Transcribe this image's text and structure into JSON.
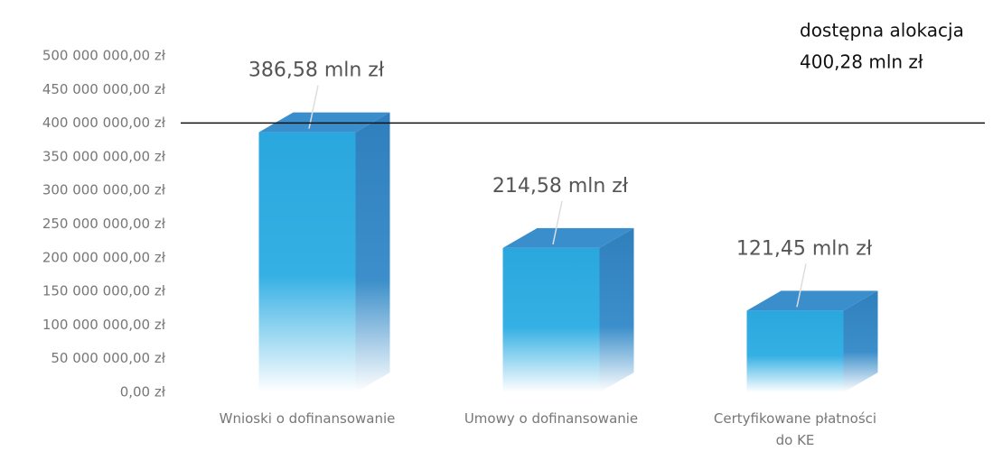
{
  "chart_data": {
    "type": "bar3d",
    "categories": [
      "Wnioski o dofinansowanie",
      "Umowy o dofinansowanie",
      "Certyfikowane płatności do KE"
    ],
    "values": [
      386580000,
      214580000,
      121450000
    ],
    "value_labels": [
      "386,58 mln zł",
      "214,58 mln zł",
      "121,45 mln zł"
    ],
    "color": "#2aa7de",
    "ylim": [
      0,
      500000000
    ],
    "yticks": [
      {
        "value": 0,
        "label": "0,00 zł"
      },
      {
        "value": 50000000,
        "label": "50 000 000,00 zł"
      },
      {
        "value": 100000000,
        "label": "100 000 000,00 zł"
      },
      {
        "value": 150000000,
        "label": "150 000 000,00 zł"
      },
      {
        "value": 200000000,
        "label": "200 000 000,00 zł"
      },
      {
        "value": 250000000,
        "label": "250 000 000,00 zł"
      },
      {
        "value": 300000000,
        "label": "300 000 000,00 zł"
      },
      {
        "value": 350000000,
        "label": "350 000 000,00 zł"
      },
      {
        "value": 400000000,
        "label": "400 000 000,00 zł"
      },
      {
        "value": 450000000,
        "label": "450 000 000,00 zł"
      },
      {
        "value": 500000000,
        "label": "500 000 000,00 zł"
      }
    ],
    "grid": false,
    "reference_line": {
      "text": "dostępna alokacja",
      "value": 400280000,
      "value_label": "400,28 mln zł"
    }
  }
}
